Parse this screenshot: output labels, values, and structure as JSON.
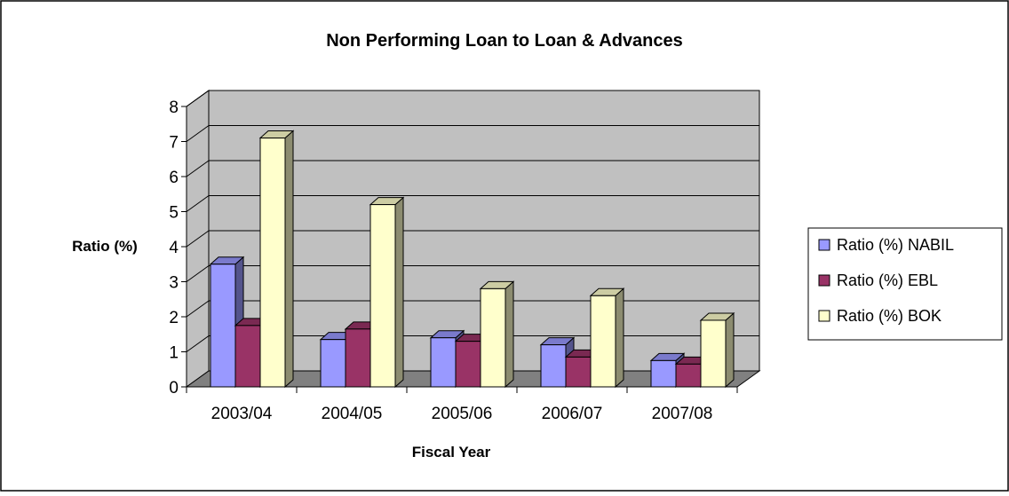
{
  "chart_data": {
    "type": "bar",
    "title": "Non Performing Loan to Loan & Advances",
    "xlabel": "Fiscal Year",
    "ylabel": "Ratio (%)",
    "categories": [
      "2003/04",
      "2004/05",
      "2005/06",
      "2006/07",
      "2007/08"
    ],
    "yticks": [
      "0",
      "1",
      "2",
      "3",
      "4",
      "5",
      "6",
      "7",
      "8"
    ],
    "ylim": [
      0,
      8
    ],
    "grid": true,
    "three_d": true,
    "legend_position": "right",
    "series": [
      {
        "name": "Ratio (%) NABIL",
        "values": [
          3.5,
          1.35,
          1.4,
          1.2,
          0.75
        ],
        "color": "#9999ff"
      },
      {
        "name": "Ratio (%) EBL",
        "values": [
          1.75,
          1.65,
          1.3,
          0.85,
          0.65
        ],
        "color": "#993366"
      },
      {
        "name": "Ratio (%) BOK",
        "values": [
          7.1,
          5.2,
          2.8,
          2.6,
          1.9
        ],
        "color": "#ffffcc"
      }
    ],
    "colors": {
      "wall": "#c0c0c0",
      "floor": "#808080",
      "grid": "#000000"
    }
  }
}
